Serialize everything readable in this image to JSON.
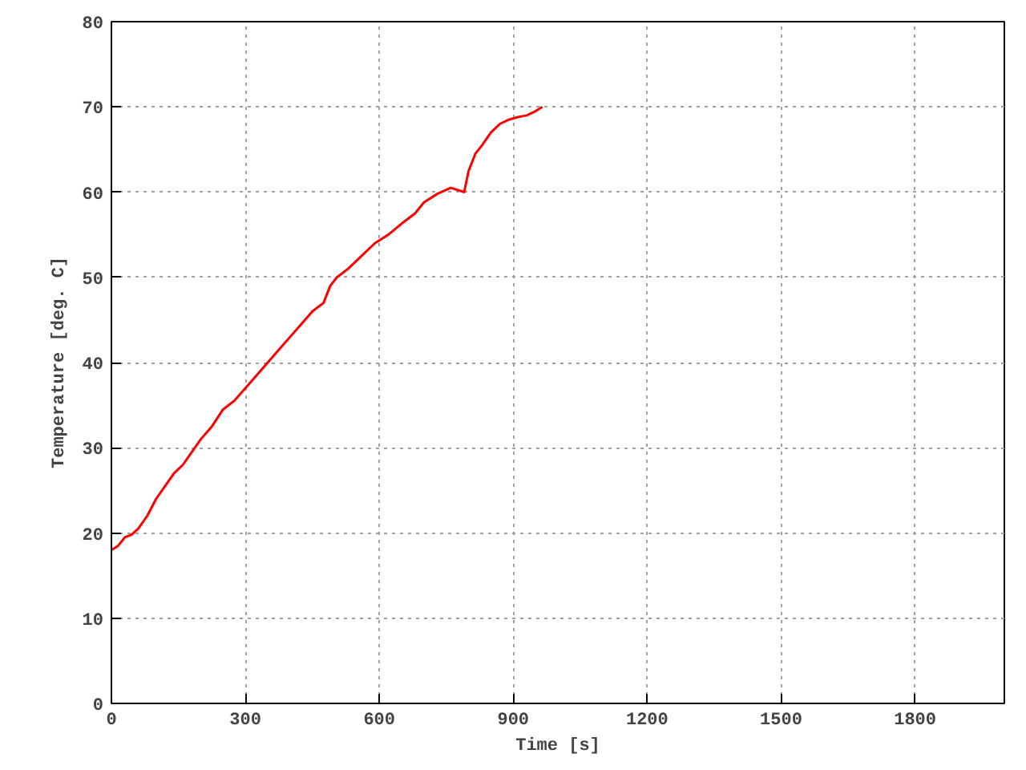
{
  "chart_data": {
    "type": "line",
    "xlabel": "Time [s]",
    "ylabel": "Temperature [deg. C]",
    "xlim": [
      0,
      2000
    ],
    "ylim": [
      0,
      80
    ],
    "xticks": [
      0,
      300,
      600,
      900,
      1200,
      1500,
      1800
    ],
    "yticks": [
      0,
      10,
      20,
      30,
      40,
      50,
      60,
      70,
      80
    ],
    "grid": true,
    "line_style": "solid",
    "series": [
      {
        "color": "#ff0000",
        "x": [
          0,
          15,
          30,
          45,
          60,
          80,
          100,
          120,
          140,
          160,
          180,
          200,
          225,
          250,
          275,
          300,
          325,
          350,
          375,
          400,
          425,
          450,
          475,
          490,
          505,
          530,
          560,
          590,
          620,
          650,
          680,
          700,
          730,
          760,
          790,
          800,
          815,
          830,
          850,
          870,
          890,
          910,
          930,
          950,
          965
        ],
        "values": [
          18,
          18.5,
          19.5,
          19.8,
          20.5,
          22,
          24,
          25.5,
          27,
          28,
          29.5,
          31,
          32.5,
          34.5,
          35.5,
          37,
          38.5,
          40,
          41.5,
          43,
          44.5,
          46,
          47,
          49,
          50,
          51,
          52.5,
          54,
          55,
          56.3,
          57.5,
          58.8,
          59.8,
          60.5,
          60,
          62.5,
          64.5,
          65.5,
          67,
          68,
          68.5,
          68.8,
          69,
          69.5,
          70
        ]
      }
    ]
  }
}
